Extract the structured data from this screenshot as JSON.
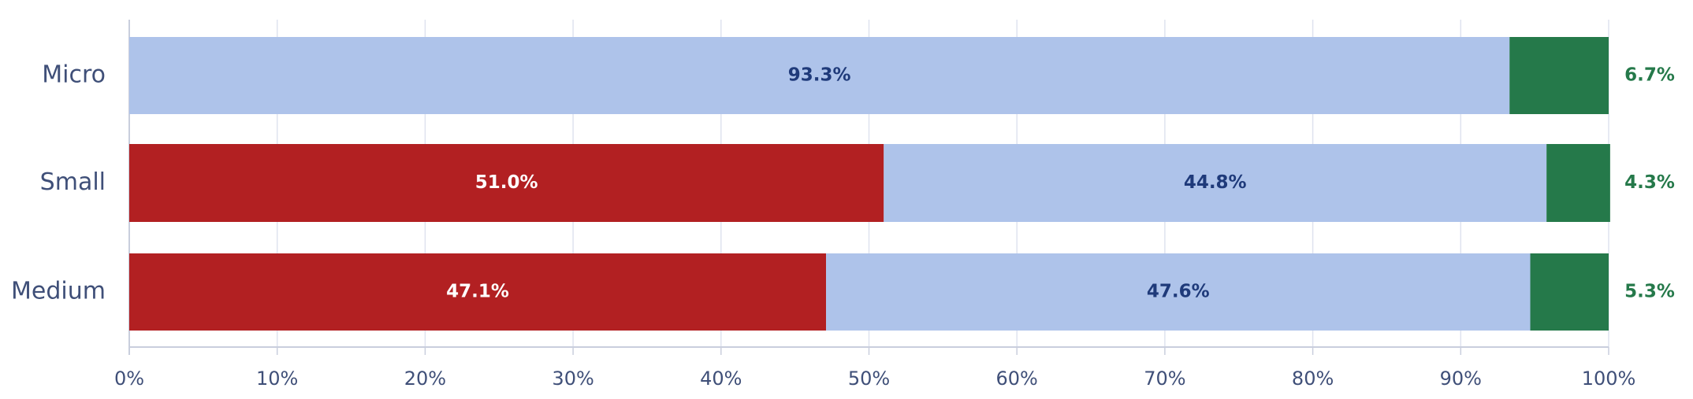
{
  "chart_data": {
    "type": "stacked-bar-horizontal",
    "categories": [
      "Micro",
      "Small",
      "Medium"
    ],
    "series": [
      {
        "color": "#b22022",
        "label_color": "#ffffff",
        "values": [
          null,
          51.0,
          47.1
        ],
        "value_labels": [
          null,
          "51.0%",
          "47.1%"
        ]
      },
      {
        "color": "#aec3ea",
        "label_color": "#1f3a7a",
        "values": [
          93.3,
          44.8,
          47.6
        ],
        "value_labels": [
          "93.3%",
          "44.8%",
          "47.6%"
        ]
      },
      {
        "color": "#25794a",
        "label_color": "#25794a",
        "values": [
          6.7,
          4.3,
          5.3
        ],
        "value_labels": [
          "6.7%",
          "4.3%",
          "5.3%"
        ]
      }
    ],
    "xlim": [
      0,
      100
    ],
    "xticks": [
      {
        "value": 0,
        "label": "0%"
      },
      {
        "value": 10,
        "label": "10%"
      },
      {
        "value": 20,
        "label": "20%"
      },
      {
        "value": 30,
        "label": "30%"
      },
      {
        "value": 40,
        "label": "40%"
      },
      {
        "value": 50,
        "label": "50%"
      },
      {
        "value": 60,
        "label": "60%"
      },
      {
        "value": 70,
        "label": "70%"
      },
      {
        "value": 80,
        "label": "80%"
      },
      {
        "value": 90,
        "label": "90%"
      },
      {
        "value": 100,
        "label": "100%"
      }
    ],
    "grid": true
  }
}
